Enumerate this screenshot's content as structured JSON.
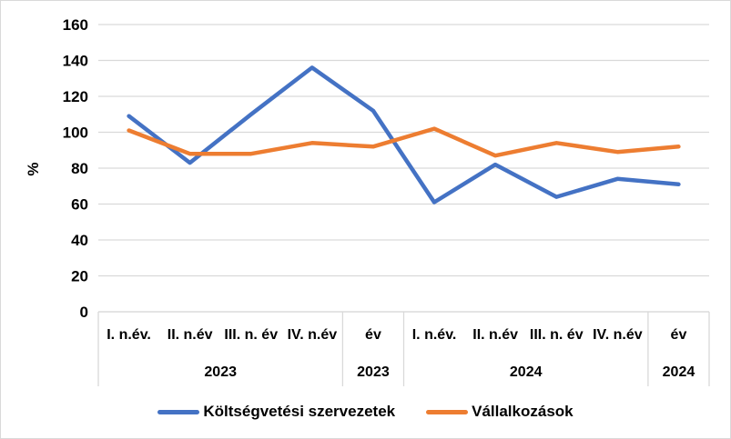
{
  "chart_data": {
    "type": "line",
    "title": "",
    "xlabel": "",
    "ylabel": "%",
    "ylim": [
      0,
      160
    ],
    "yticks": [
      0,
      20,
      40,
      60,
      80,
      100,
      120,
      140,
      160
    ],
    "grid": true,
    "legend_position": "bottom",
    "categories": [
      "I. n.év.",
      "II. n.év",
      "III. n. év",
      "IV. n.év",
      "év",
      "I. n.év.",
      "II. n.év",
      "III. n. év",
      "IV. n.év",
      "év"
    ],
    "category_groups": [
      {
        "label": "2023",
        "start": 0,
        "count": 4
      },
      {
        "label": "2023",
        "start": 4,
        "count": 1
      },
      {
        "label": "2024",
        "start": 5,
        "count": 4
      },
      {
        "label": "2024",
        "start": 9,
        "count": 1
      }
    ],
    "series": [
      {
        "name": "Költségvetési szervezetek",
        "color": "#4472C4",
        "values": [
          109,
          83,
          110,
          136,
          112,
          61,
          82,
          64,
          74,
          71
        ]
      },
      {
        "name": "Vállalkozások",
        "color": "#ED7D31",
        "values": [
          101,
          88,
          88,
          94,
          92,
          102,
          87,
          94,
          89,
          92
        ]
      }
    ],
    "colors": {
      "gridline": "#D9D9D9",
      "axis_line": "#D9D9D9",
      "separator": "#D9D9D9",
      "text": "#000000"
    }
  }
}
